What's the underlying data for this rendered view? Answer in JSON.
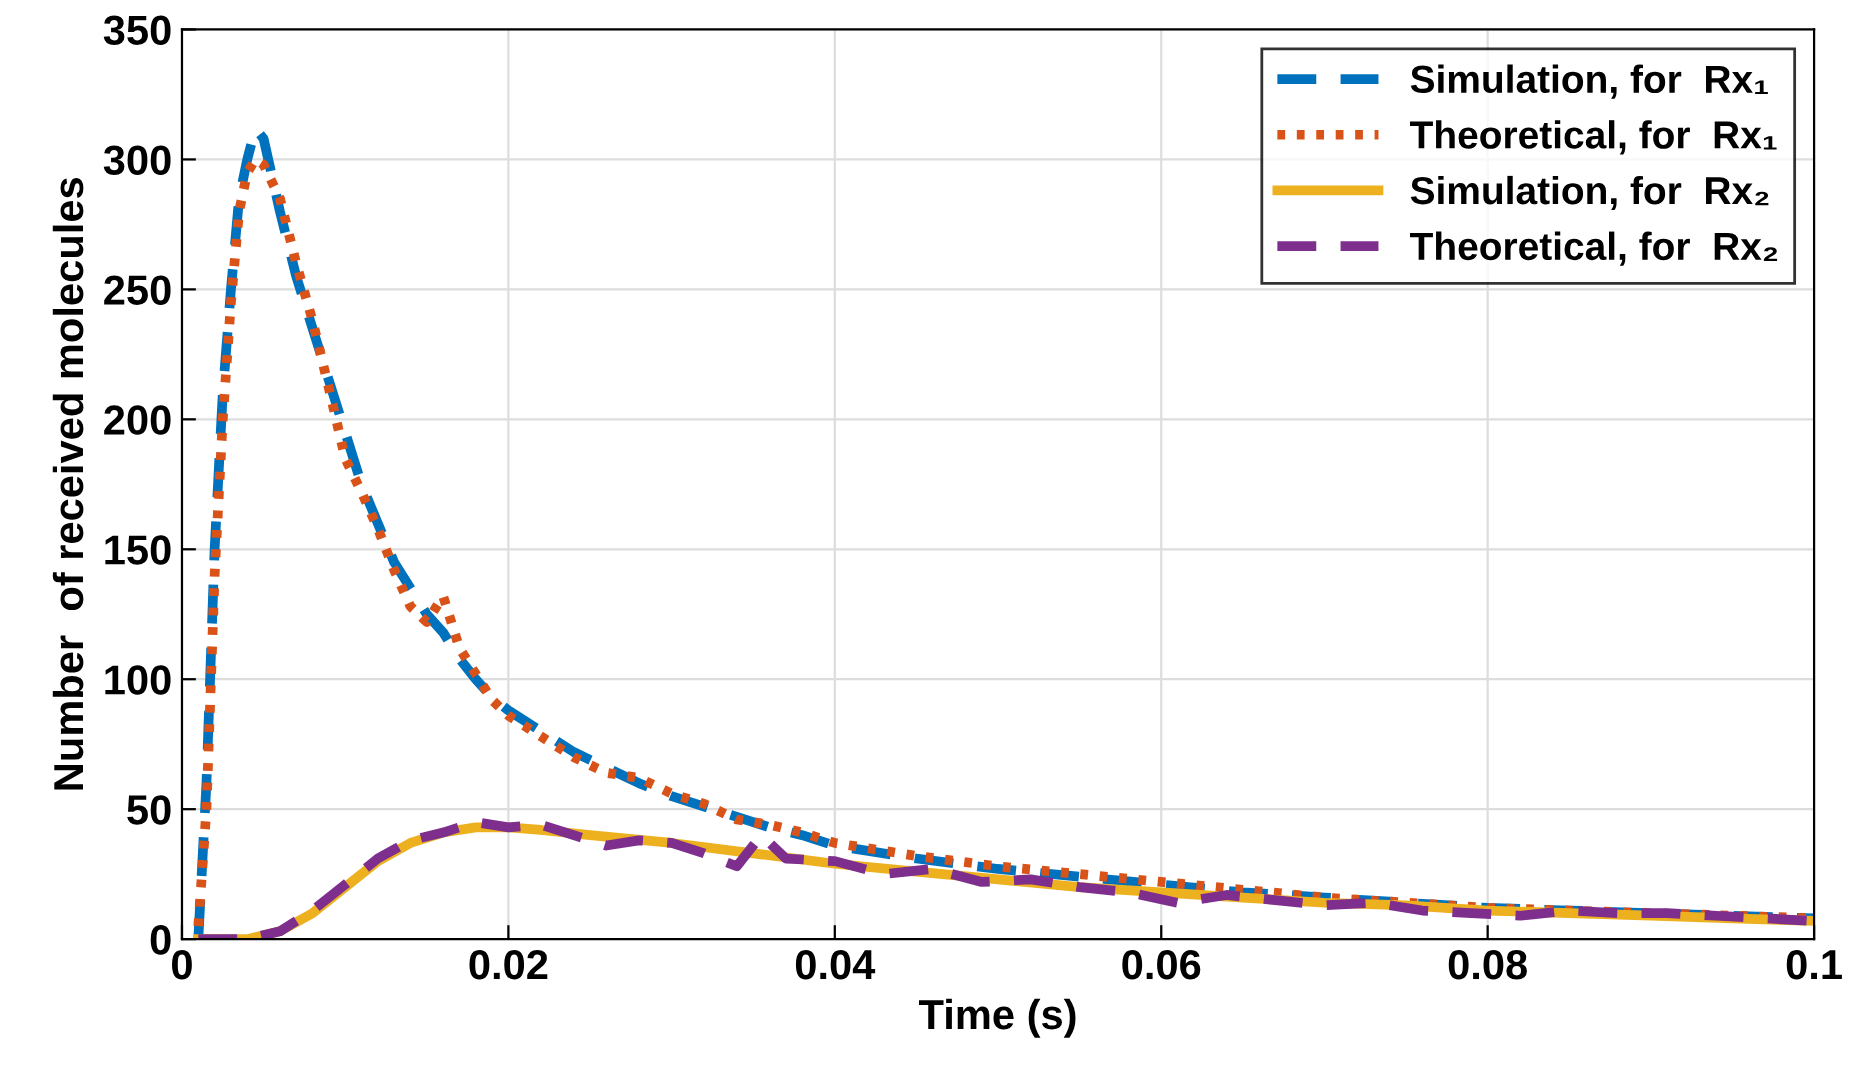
{
  "chart_data": {
    "type": "line",
    "xlabel": "Time (s)",
    "ylabel": "Number  of received molecules",
    "xlim": [
      0,
      0.1
    ],
    "ylim": [
      0,
      350
    ],
    "xticks": [
      0,
      0.02,
      0.04,
      0.06,
      0.08,
      0.1
    ],
    "yticks": [
      0,
      50,
      100,
      150,
      200,
      250,
      300,
      350
    ],
    "grid": true,
    "legend": "top right",
    "marker": "none",
    "series": [
      {
        "name": "Simulation, for  Rx₁",
        "color": "#0072bd",
        "line_style": "dashed",
        "x": [
          0.001,
          0.0015,
          0.002,
          0.0025,
          0.003,
          0.0035,
          0.004,
          0.0045,
          0.005,
          0.006,
          0.007,
          0.008,
          0.009,
          0.01,
          0.011,
          0.012,
          0.013,
          0.014,
          0.015,
          0.016,
          0.017,
          0.018,
          0.019,
          0.02,
          0.022,
          0.024,
          0.026,
          0.028,
          0.03,
          0.032,
          0.034,
          0.036,
          0.038,
          0.04,
          0.045,
          0.05,
          0.055,
          0.06,
          0.065,
          0.07,
          0.075,
          0.08,
          0.085,
          0.09,
          0.095,
          0.1
        ],
        "values": [
          0,
          60,
          150,
          210,
          250,
          285,
          300,
          312,
          308,
          280,
          255,
          235,
          215,
          195,
          175,
          160,
          145,
          135,
          125,
          118,
          108,
          100,
          93,
          88,
          80,
          72,
          66,
          60,
          55,
          51,
          47,
          43,
          40,
          36,
          31,
          27,
          24,
          21,
          18,
          16,
          14,
          12,
          11,
          10,
          9,
          8
        ]
      },
      {
        "name": "Theoretical, for  Rx₁",
        "color": "#d95319",
        "line_style": "dotted",
        "x": [
          0.001,
          0.0015,
          0.002,
          0.0025,
          0.003,
          0.0035,
          0.004,
          0.0045,
          0.005,
          0.006,
          0.007,
          0.008,
          0.009,
          0.01,
          0.011,
          0.012,
          0.013,
          0.014,
          0.015,
          0.016,
          0.017,
          0.018,
          0.019,
          0.02,
          0.022,
          0.024,
          0.026,
          0.028,
          0.03,
          0.032,
          0.034,
          0.036,
          0.038,
          0.04,
          0.045,
          0.05,
          0.055,
          0.06,
          0.065,
          0.07,
          0.075,
          0.08,
          0.085,
          0.09,
          0.095,
          0.1
        ],
        "values": [
          5,
          50,
          140,
          200,
          245,
          280,
          295,
          300,
          298,
          285,
          260,
          238,
          212,
          185,
          172,
          158,
          142,
          128,
          122,
          132,
          112,
          102,
          92,
          86,
          78,
          70,
          64,
          62,
          56,
          52,
          46,
          44,
          41,
          37,
          32,
          28,
          25,
          22,
          19,
          16,
          14,
          12,
          11,
          10,
          9,
          8
        ]
      },
      {
        "name": "Simulation, for  Rx₂",
        "color": "#edb120",
        "line_style": "solid",
        "x": [
          0.001,
          0.004,
          0.006,
          0.008,
          0.01,
          0.012,
          0.014,
          0.016,
          0.018,
          0.02,
          0.022,
          0.025,
          0.03,
          0.035,
          0.04,
          0.045,
          0.05,
          0.055,
          0.06,
          0.065,
          0.07,
          0.075,
          0.08,
          0.085,
          0.09,
          0.095,
          0.1
        ],
        "values": [
          0,
          0,
          3,
          10,
          20,
          30,
          37,
          41,
          43,
          43,
          42,
          40,
          37,
          33,
          29,
          26,
          23,
          20,
          18,
          16,
          14,
          13,
          11,
          10,
          9,
          8,
          7
        ]
      },
      {
        "name": "Theoretical, for  Rx₂",
        "color": "#7e2f8e",
        "line_style": "dashed",
        "x": [
          0.001,
          0.004,
          0.006,
          0.008,
          0.01,
          0.012,
          0.014,
          0.016,
          0.018,
          0.02,
          0.022,
          0.024,
          0.026,
          0.028,
          0.03,
          0.032,
          0.034,
          0.0355,
          0.037,
          0.04,
          0.043,
          0.046,
          0.049,
          0.052,
          0.055,
          0.058,
          0.061,
          0.064,
          0.067,
          0.07,
          0.073,
          0.076,
          0.079,
          0.082,
          0.085,
          0.088,
          0.091,
          0.094,
          0.097,
          0.1
        ],
        "values": [
          0,
          0,
          3,
          11,
          21,
          31,
          38,
          41,
          45,
          43,
          44,
          40,
          36,
          38,
          37,
          33,
          28,
          40,
          31,
          30,
          25,
          27,
          22,
          23,
          20,
          18,
          14,
          17,
          15,
          13,
          14,
          11,
          10,
          9,
          11,
          10,
          10,
          9,
          8,
          7
        ]
      }
    ]
  }
}
